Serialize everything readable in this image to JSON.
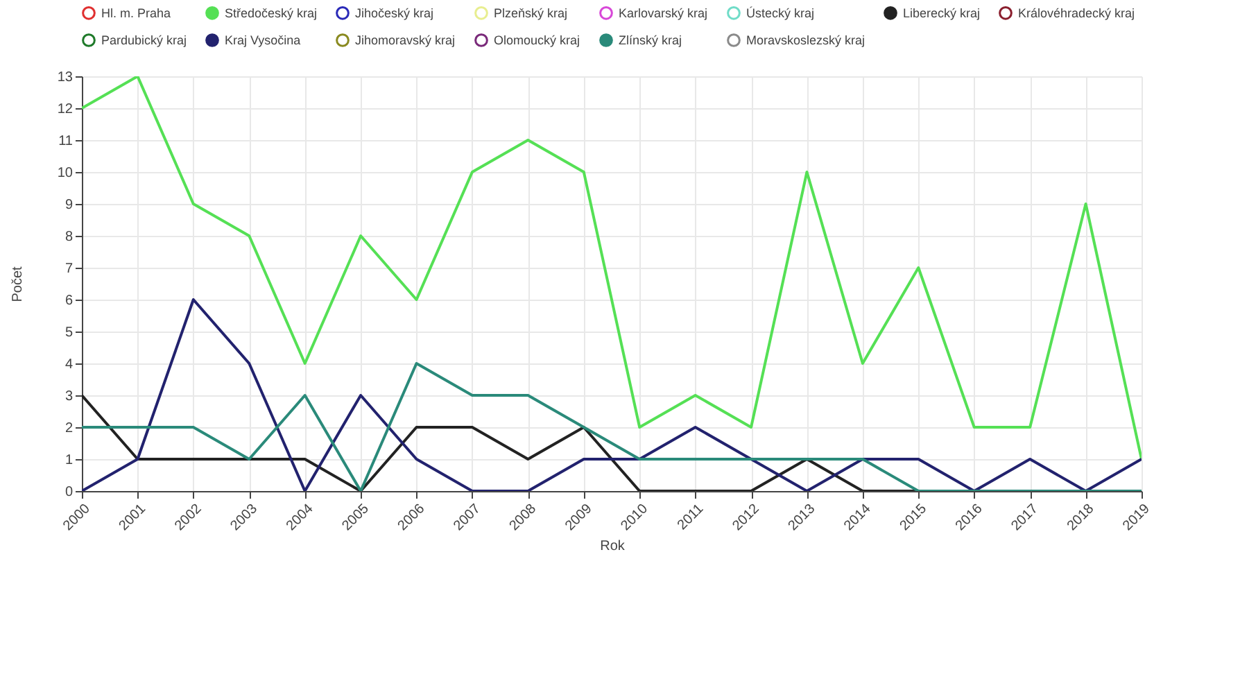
{
  "chart_data": {
    "type": "line",
    "xlabel": "Rok",
    "ylabel": "Počet",
    "categories": [
      "2000",
      "2001",
      "2002",
      "2003",
      "2004",
      "2005",
      "2006",
      "2007",
      "2008",
      "2009",
      "2010",
      "2011",
      "2012",
      "2013",
      "2014",
      "2015",
      "2016",
      "2017",
      "2018",
      "2019"
    ],
    "ylim": [
      0,
      13
    ],
    "yticks": [
      0,
      1,
      2,
      3,
      4,
      5,
      6,
      7,
      8,
      9,
      10,
      11,
      12,
      13
    ],
    "grid": true,
    "legend": "top",
    "marker": "none",
    "series": [
      {
        "name": "Hl. m. Praha",
        "color": "#e03030",
        "values": [
          null,
          null,
          null,
          null,
          null,
          null,
          null,
          null,
          null,
          null,
          null,
          null,
          null,
          null,
          null,
          null,
          null,
          null,
          null,
          null
        ]
      },
      {
        "name": "Středočeský kraj",
        "color": "#55e055",
        "values": [
          12,
          13,
          9,
          8,
          4,
          8,
          6,
          10,
          11,
          10,
          2,
          3,
          2,
          10,
          4,
          7,
          2,
          2,
          9,
          1
        ]
      },
      {
        "name": "Jihočeský kraj",
        "color": "#2a2ab8",
        "values": [
          null,
          null,
          null,
          null,
          null,
          null,
          null,
          null,
          null,
          null,
          null,
          null,
          null,
          null,
          null,
          null,
          null,
          null,
          null,
          null
        ]
      },
      {
        "name": "Plzeňský kraj",
        "color": "#e8ee90",
        "values": [
          null,
          null,
          null,
          null,
          null,
          null,
          null,
          null,
          null,
          null,
          null,
          null,
          null,
          null,
          null,
          null,
          null,
          null,
          null,
          null
        ]
      },
      {
        "name": "Karlovarský kraj",
        "color": "#d848d8",
        "values": [
          null,
          null,
          null,
          null,
          null,
          null,
          null,
          null,
          null,
          null,
          null,
          null,
          null,
          null,
          null,
          null,
          null,
          null,
          null,
          null
        ]
      },
      {
        "name": "Ústecký kraj",
        "color": "#70dcc8",
        "values": [
          null,
          null,
          null,
          null,
          null,
          null,
          null,
          null,
          null,
          null,
          null,
          null,
          null,
          null,
          null,
          null,
          null,
          null,
          null,
          null
        ]
      },
      {
        "name": "Liberecký kraj",
        "color": "#222222",
        "values": [
          3,
          1,
          1,
          1,
          1,
          0,
          2,
          2,
          1,
          2,
          0,
          0,
          0,
          1,
          0,
          0,
          0,
          0,
          0,
          0
        ]
      },
      {
        "name": "Královéhradecký kraj",
        "color": "#8a1f2e",
        "values": [
          null,
          null,
          null,
          null,
          null,
          null,
          null,
          null,
          null,
          null,
          null,
          null,
          null,
          null,
          null,
          null,
          null,
          null,
          null,
          null
        ]
      },
      {
        "name": "Pardubický kraj",
        "color": "#1f7a2a",
        "values": [
          null,
          null,
          null,
          null,
          null,
          null,
          null,
          null,
          null,
          null,
          null,
          null,
          null,
          null,
          null,
          null,
          null,
          null,
          null,
          null
        ]
      },
      {
        "name": "Kraj Vysočina",
        "color": "#22226e",
        "values": [
          0,
          1,
          6,
          4,
          0,
          3,
          1,
          0,
          0,
          1,
          1,
          2,
          1,
          0,
          1,
          1,
          0,
          1,
          0,
          1
        ]
      },
      {
        "name": "Jihomoravský kraj",
        "color": "#8a8a20",
        "values": [
          null,
          null,
          null,
          null,
          null,
          null,
          null,
          null,
          null,
          null,
          null,
          null,
          null,
          null,
          null,
          null,
          null,
          null,
          null,
          null
        ]
      },
      {
        "name": "Olomoucký kraj",
        "color": "#7a2a7a",
        "values": [
          null,
          null,
          null,
          null,
          null,
          null,
          null,
          null,
          null,
          null,
          null,
          null,
          null,
          null,
          null,
          null,
          null,
          null,
          null,
          null
        ]
      },
      {
        "name": "Zlínský kraj",
        "color": "#2a8a7a",
        "values": [
          2,
          2,
          2,
          1,
          3,
          0,
          4,
          3,
          3,
          2,
          1,
          1,
          1,
          1,
          1,
          0,
          0,
          0,
          0,
          0
        ]
      },
      {
        "name": "Moravskoslezský kraj",
        "color": "#8a8a8a",
        "values": [
          null,
          null,
          null,
          null,
          null,
          null,
          null,
          null,
          null,
          null,
          null,
          null,
          null,
          null,
          null,
          null,
          null,
          null,
          null,
          null
        ]
      }
    ]
  }
}
